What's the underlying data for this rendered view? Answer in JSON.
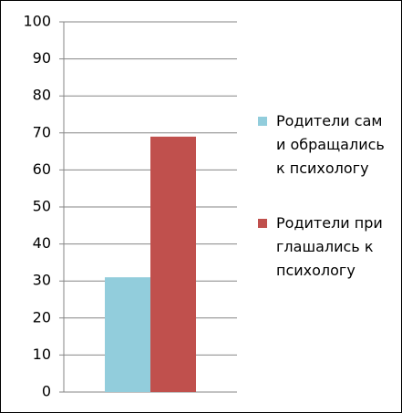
{
  "chart_data": {
    "type": "bar",
    "categories": [
      null
    ],
    "series": [
      {
        "name": "Родители сами обращались к психологу",
        "color": "#92cddc",
        "values": [
          31
        ]
      },
      {
        "name": "Родители приглашались к психологу",
        "color": "#c0504d",
        "values": [
          69
        ]
      }
    ],
    "ylim": [
      0,
      100
    ],
    "yticks": [
      0,
      10,
      20,
      30,
      40,
      50,
      60,
      70,
      80,
      90,
      100
    ],
    "grid": true,
    "legend": "right"
  }
}
